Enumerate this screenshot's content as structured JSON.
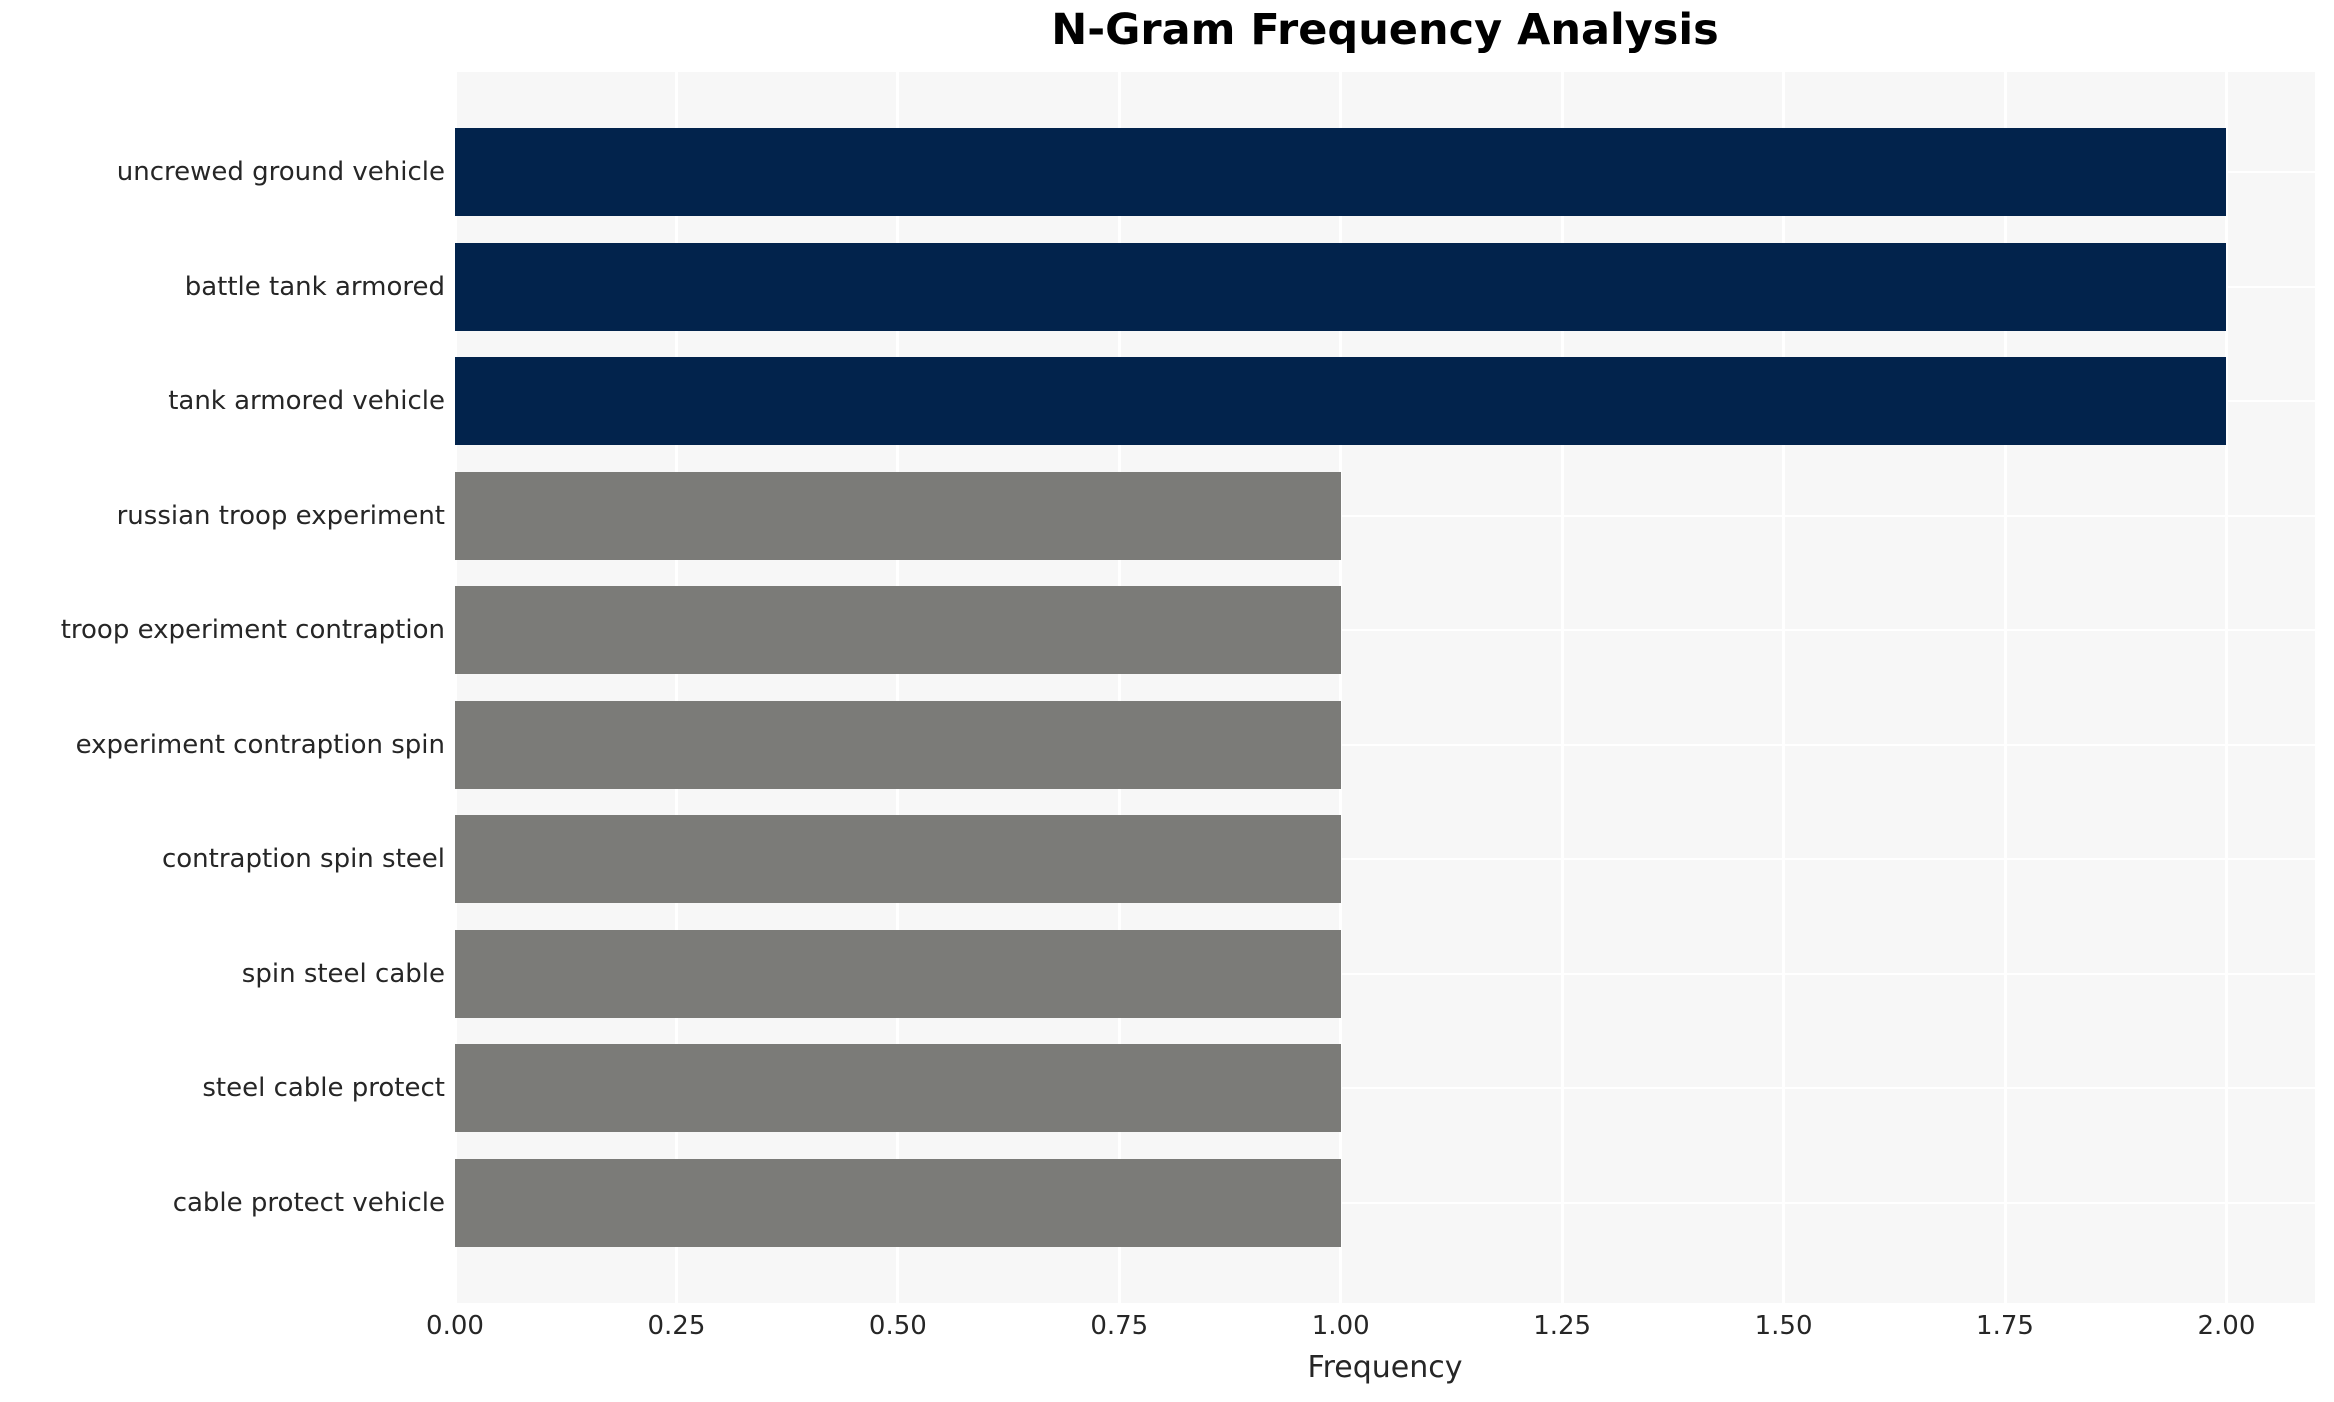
{
  "chart_data": {
    "type": "bar",
    "orientation": "horizontal",
    "title": "N-Gram Frequency Analysis",
    "xlabel": "Frequency",
    "ylabel": "",
    "categories": [
      "uncrewed ground vehicle",
      "battle tank armored",
      "tank armored vehicle",
      "russian troop experiment",
      "troop experiment contraption",
      "experiment contraption spin",
      "contraption spin steel",
      "spin steel cable",
      "steel cable protect",
      "cable protect vehicle"
    ],
    "values": [
      2,
      2,
      2,
      1,
      1,
      1,
      1,
      1,
      1,
      1
    ],
    "colors": [
      "#02234C",
      "#02234C",
      "#02234C",
      "#7B7B78",
      "#7B7B78",
      "#7B7B78",
      "#7B7B78",
      "#7B7B78",
      "#7B7B78",
      "#7B7B78"
    ],
    "xlim": [
      0,
      2.1
    ],
    "xticks": [
      {
        "label": "0.00",
        "value": 0.0
      },
      {
        "label": "0.25",
        "value": 0.25
      },
      {
        "label": "0.50",
        "value": 0.5
      },
      {
        "label": "0.75",
        "value": 0.75
      },
      {
        "label": "1.00",
        "value": 1.0
      },
      {
        "label": "1.25",
        "value": 1.25
      },
      {
        "label": "1.50",
        "value": 1.5
      },
      {
        "label": "1.75",
        "value": 1.75
      },
      {
        "label": "2.00",
        "value": 2.0
      }
    ],
    "grid": true,
    "legend_position": "none",
    "plot_background": "#F7F7F7",
    "grid_color": "#FFFFFF",
    "bar_color_high": "#02234C",
    "bar_color_low": "#7B7B78",
    "text_color": "#262626",
    "title_color": "#000000"
  }
}
